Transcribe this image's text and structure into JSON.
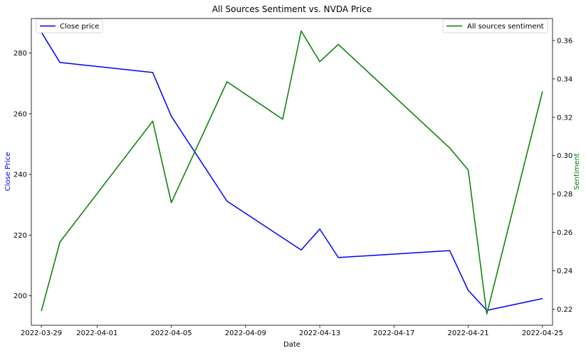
{
  "chart_data": {
    "type": "line",
    "title": "All Sources Sentiment vs. NVDA Price",
    "xlabel": "Date",
    "ylabel_left": "Close Price",
    "ylabel_right": "Sentiment",
    "x_ticks": [
      "2022-03-29",
      "2022-04-01",
      "2022-04-05",
      "2022-04-09",
      "2022-04-13",
      "2022-04-17",
      "2022-04-21",
      "2022-04-25"
    ],
    "y_left_ticks": [
      200,
      220,
      240,
      260,
      280
    ],
    "y_right_ticks": [
      0.22,
      0.24,
      0.26,
      0.28,
      0.3,
      0.32,
      0.34,
      0.36
    ],
    "xlim": [
      "2022-03-28T11:00",
      "2022-04-25T13:00"
    ],
    "ylim_left": [
      190.3,
      291.4
    ],
    "ylim_right": [
      0.2116,
      0.3715
    ],
    "grid": false,
    "series": [
      {
        "name": "Close price",
        "axis": "left",
        "color": "#0000ff",
        "legend_position": "top-left",
        "x": [
          "2022-03-29",
          "2022-03-30",
          "2022-04-04",
          "2022-04-05",
          "2022-04-08",
          "2022-04-12",
          "2022-04-13",
          "2022-04-14",
          "2022-04-20",
          "2022-04-21",
          "2022-04-22",
          "2022-04-25"
        ],
        "values": [
          286.9,
          276.9,
          273.6,
          259.2,
          231.2,
          215.1,
          222.0,
          212.6,
          214.9,
          201.8,
          195.2,
          199.1
        ]
      },
      {
        "name": "All sources sentiment",
        "axis": "right",
        "color": "#008000",
        "legend_position": "top-right",
        "x": [
          "2022-03-29",
          "2022-03-30",
          "2022-04-04",
          "2022-04-05",
          "2022-04-08",
          "2022-04-11",
          "2022-04-12",
          "2022-04-13",
          "2022-04-14",
          "2022-04-20",
          "2022-04-21",
          "2022-04-22",
          "2022-04-25"
        ],
        "values": [
          0.219,
          0.255,
          0.318,
          0.2755,
          0.3385,
          0.319,
          0.365,
          0.349,
          0.358,
          0.304,
          0.2925,
          0.2175,
          0.3335
        ]
      }
    ]
  }
}
